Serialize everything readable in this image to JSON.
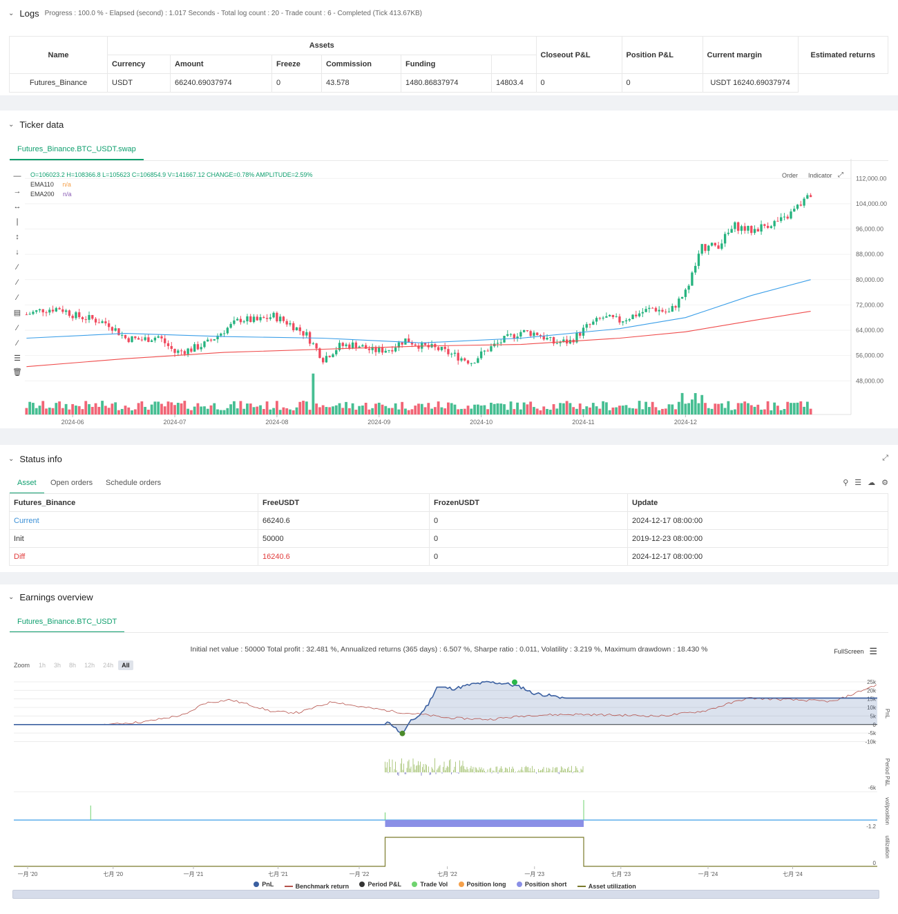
{
  "logs": {
    "title": "Logs",
    "progress": "Progress : 100.0 % - Elapsed (second) : 1.017  Seconds - Total log count : 20 - Trade count : 6 - Completed (Tick 413.67KB)",
    "headers": {
      "name": "Name",
      "assets": "Assets",
      "currency": "Currency",
      "amount": "Amount",
      "freeze": "Freeze",
      "commission": "Commission",
      "funding": "Funding",
      "closeout": "Closeout P&L",
      "position": "Position P&L",
      "margin": "Current margin",
      "returns": "Estimated returns"
    },
    "row": {
      "name": "Futures_Binance",
      "currency": "USDT",
      "amount": "66240.69037974",
      "freeze": "0",
      "commission": "43.578",
      "funding": "1480.86837974",
      "closeout": "14803.4",
      "position": "0",
      "margin": "0",
      "returns": "USDT 16240.69037974"
    }
  },
  "ticker": {
    "title": "Ticker data",
    "tab": "Futures_Binance.BTC_USDT.swap",
    "ohlc": "O=106023.2 H=108366.8 L=105623 C=106854.9 V=141667.12 CHANGE=0.78% AMPLITUDE=2.59%",
    "ema110_label": "EMA110",
    "ema110_value": "n/a",
    "ema200_label": "EMA200",
    "ema200_value": "n/a",
    "order_btn": "Order",
    "indicator_btn": "Indicator"
  },
  "status": {
    "title": "Status info",
    "tabs": [
      "Asset",
      "Open orders",
      "Schedule orders"
    ],
    "headers": [
      "Futures_Binance",
      "FreeUSDT",
      "FrozenUSDT",
      "Update"
    ],
    "rows": [
      {
        "label": "Current",
        "free": "66240.6",
        "frozen": "0",
        "update": "2024-12-17 08:00:00"
      },
      {
        "label": "Init",
        "free": "50000",
        "frozen": "0",
        "update": "2019-12-23 08:00:00"
      },
      {
        "label": "Diff",
        "free": "16240.6",
        "frozen": "0",
        "update": "2024-12-17 08:00:00"
      }
    ]
  },
  "earnings": {
    "title": "Earnings overview",
    "tab": "Futures_Binance.BTC_USDT",
    "summary": "Initial net value : 50000 Total profit : 32.481 %, Annualized returns (365 days) : 6.507 %, Sharpe ratio : 0.011, Volatility : 3.219 %, Maximum drawdown : 18.430 %",
    "fullscreen": "FullScreen",
    "zoom_label": "Zoom",
    "zoom_buttons": [
      "1h",
      "3h",
      "8h",
      "12h",
      "24h",
      "All"
    ],
    "axis_labels": {
      "pnl": "PnL",
      "period": "Period P&L",
      "vol": "vol/position",
      "util": "utilization"
    },
    "legend": [
      "PnL",
      "Benchmark return",
      "Period P&L",
      "Trade Vol",
      "Position long",
      "Position short",
      "Asset utilization"
    ],
    "colors": {
      "pnl": "#3a5fa0",
      "benchmark": "#b5514a",
      "period": "#333333",
      "tradevol": "#6fd36f",
      "long": "#f5a04a",
      "short": "#8a8fe6",
      "util": "#7a7a2a"
    }
  },
  "chart_data": [
    {
      "type": "candlestick",
      "title": "",
      "x_ticks": [
        "2024-06",
        "2024-07",
        "2024-08",
        "2024-09",
        "2024-10",
        "2024-11",
        "2024-12"
      ],
      "y_ticks": [
        112000,
        104000,
        96000,
        88000,
        80000,
        72000,
        64000,
        56000,
        48000
      ],
      "ylim": [
        45000,
        116000
      ],
      "close_path": [
        [
          0,
          69000
        ],
        [
          5,
          70500
        ],
        [
          10,
          71000
        ],
        [
          15,
          68500
        ],
        [
          20,
          67500
        ],
        [
          25,
          66000
        ],
        [
          30,
          61500
        ],
        [
          35,
          61000
        ],
        [
          40,
          62000
        ],
        [
          45,
          57000
        ],
        [
          50,
          58000
        ],
        [
          55,
          60000
        ],
        [
          60,
          64000
        ],
        [
          65,
          67500
        ],
        [
          70,
          67000
        ],
        [
          75,
          68500
        ],
        [
          80,
          66000
        ],
        [
          85,
          62500
        ],
        [
          90,
          55000
        ],
        [
          95,
          59000
        ],
        [
          100,
          59500
        ],
        [
          105,
          57500
        ],
        [
          110,
          58000
        ],
        [
          115,
          61000
        ],
        [
          120,
          59000
        ],
        [
          125,
          58000
        ],
        [
          130,
          56000
        ],
        [
          135,
          54000
        ],
        [
          140,
          58000
        ],
        [
          145,
          61000
        ],
        [
          150,
          63500
        ],
        [
          155,
          63000
        ],
        [
          160,
          60000
        ],
        [
          165,
          60500
        ],
        [
          170,
          65000
        ],
        [
          175,
          68000
        ],
        [
          180,
          67000
        ],
        [
          185,
          69000
        ],
        [
          190,
          71000
        ],
        [
          195,
          69500
        ],
        [
          200,
          76000
        ],
        [
          205,
          90000
        ],
        [
          210,
          91000
        ],
        [
          215,
          97000
        ],
        [
          220,
          95500
        ],
        [
          225,
          97500
        ],
        [
          230,
          99000
        ],
        [
          235,
          104000
        ],
        [
          238,
          106800
        ]
      ],
      "ema110": [
        [
          0,
          61500
        ],
        [
          30,
          63000
        ],
        [
          60,
          62000
        ],
        [
          90,
          61500
        ],
        [
          120,
          60000
        ],
        [
          150,
          61500
        ],
        [
          180,
          64500
        ],
        [
          200,
          68000
        ],
        [
          220,
          75000
        ],
        [
          238,
          80000
        ]
      ],
      "ema200": [
        [
          0,
          52500
        ],
        [
          30,
          55000
        ],
        [
          60,
          57000
        ],
        [
          90,
          58000
        ],
        [
          120,
          59000
        ],
        [
          150,
          59500
        ],
        [
          180,
          61500
        ],
        [
          200,
          63500
        ],
        [
          220,
          67000
        ],
        [
          238,
          70000
        ]
      ]
    },
    {
      "type": "line",
      "title": "",
      "x_ticks": [
        "一月 '20",
        "七月 '20",
        "一月 '21",
        "七月 '21",
        "一月 '22",
        "七月 '22",
        "一月 '23",
        "七月 '23",
        "一月 '24",
        "七月 '24"
      ],
      "y_ticks": [
        "25k",
        "20k",
        "15k",
        "10k",
        "5k",
        "0",
        "-5k",
        "-10k"
      ],
      "ylim": [
        -11000,
        27000
      ],
      "series": [
        {
          "name": "PnL",
          "points": [
            [
              0,
              0
            ],
            [
              43,
              0
            ],
            [
              43.5,
              1500
            ],
            [
              44.5,
              -3500
            ],
            [
              45,
              -5200
            ],
            [
              46,
              2000
            ],
            [
              47,
              5500
            ],
            [
              48,
              12000
            ],
            [
              49,
              22000
            ],
            [
              51,
              21000
            ],
            [
              53,
              23500
            ],
            [
              55,
              24800
            ],
            [
              57,
              24000
            ],
            [
              59,
              21500
            ],
            [
              60,
              18500
            ],
            [
              64,
              15500
            ],
            [
              100,
              15500
            ]
          ]
        },
        {
          "name": "Benchmark return",
          "points": [
            [
              0,
              0
            ],
            [
              5,
              0
            ],
            [
              10,
              0
            ],
            [
              15,
              1500
            ],
            [
              20,
              6000
            ],
            [
              22,
              12500
            ],
            [
              25,
              14500
            ],
            [
              27,
              12000
            ],
            [
              30,
              7500
            ],
            [
              33,
              7000
            ],
            [
              37,
              13500
            ],
            [
              40,
              10500
            ],
            [
              45,
              7000
            ],
            [
              48,
              5500
            ],
            [
              50,
              4000
            ],
            [
              55,
              3000
            ],
            [
              60,
              5500
            ],
            [
              65,
              6000
            ],
            [
              75,
              5000
            ],
            [
              80,
              8000
            ],
            [
              85,
              15500
            ],
            [
              90,
              14500
            ],
            [
              95,
              13500
            ],
            [
              98,
              19500
            ],
            [
              100,
              23500
            ]
          ]
        }
      ]
    }
  ]
}
